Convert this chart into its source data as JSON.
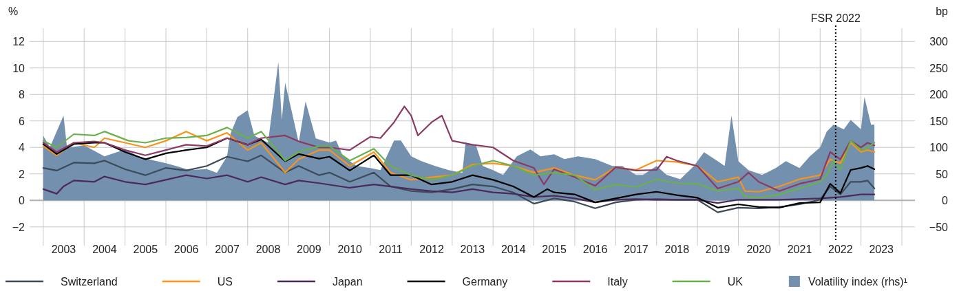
{
  "chart_data": {
    "type": "line",
    "ylabel": "%",
    "y2label": "bp",
    "legend": "bottom",
    "grid": true,
    "line_style": "solid",
    "marker": "none",
    "xlim": [
      "2002-09-01",
      "2024-04-27"
    ],
    "xticks": [
      {
        "value": "2003-01-01",
        "label": null
      },
      {
        "value": "2003-07-02",
        "label": "2003"
      },
      {
        "value": "2004-01-01",
        "label": null
      },
      {
        "value": "2004-07-02",
        "label": "2004"
      },
      {
        "value": "2005-01-01",
        "label": null
      },
      {
        "value": "2005-07-02",
        "label": "2005"
      },
      {
        "value": "2006-01-01",
        "label": null
      },
      {
        "value": "2006-07-02",
        "label": "2006"
      },
      {
        "value": "2007-01-01",
        "label": null
      },
      {
        "value": "2007-07-02",
        "label": "2007"
      },
      {
        "value": "2008-01-01",
        "label": null
      },
      {
        "value": "2008-07-02",
        "label": "2008"
      },
      {
        "value": "2009-01-01",
        "label": null
      },
      {
        "value": "2009-07-02",
        "label": "2009"
      },
      {
        "value": "2010-01-01",
        "label": null
      },
      {
        "value": "2010-07-02",
        "label": "2010"
      },
      {
        "value": "2011-01-01",
        "label": null
      },
      {
        "value": "2011-07-02",
        "label": "2011"
      },
      {
        "value": "2012-01-01",
        "label": null
      },
      {
        "value": "2012-07-02",
        "label": "2012"
      },
      {
        "value": "2013-01-01",
        "label": null
      },
      {
        "value": "2013-07-02",
        "label": "2013"
      },
      {
        "value": "2014-01-01",
        "label": null
      },
      {
        "value": "2014-07-02",
        "label": "2014"
      },
      {
        "value": "2015-01-01",
        "label": null
      },
      {
        "value": "2015-07-02",
        "label": "2015"
      },
      {
        "value": "2016-01-01",
        "label": null
      },
      {
        "value": "2016-07-02",
        "label": "2016"
      },
      {
        "value": "2017-01-01",
        "label": null
      },
      {
        "value": "2017-07-02",
        "label": "2017"
      },
      {
        "value": "2018-01-01",
        "label": null
      },
      {
        "value": "2018-07-02",
        "label": "2018"
      },
      {
        "value": "2019-01-01",
        "label": null
      },
      {
        "value": "2019-07-02",
        "label": "2019"
      },
      {
        "value": "2020-01-01",
        "label": null
      },
      {
        "value": "2020-07-02",
        "label": "2020"
      },
      {
        "value": "2021-01-01",
        "label": null
      },
      {
        "value": "2021-07-02",
        "label": "2021"
      },
      {
        "value": "2022-01-01",
        "label": null
      },
      {
        "value": "2022-07-02",
        "label": "2022"
      },
      {
        "value": "2023-01-01",
        "label": null
      },
      {
        "value": "2023-07-02",
        "label": "2023"
      },
      {
        "value": "2024-01-01",
        "label": null
      }
    ],
    "ylim": [
      -3,
      13
    ],
    "yticks": [
      -2,
      0,
      2,
      4,
      6,
      8,
      10,
      12
    ],
    "y2lim": [
      -75,
      325
    ],
    "y2ticks": [
      -50,
      0,
      50,
      100,
      150,
      200,
      250,
      300
    ],
    "ref_lines": [
      {
        "axis": "x",
        "value": "2022-05-20",
        "label": "FSR 2022",
        "color": "#000000",
        "line_style": "dotted"
      }
    ],
    "series": [
      {
        "name": "Switzerland",
        "color": "#3d4a57",
        "x": [
          "2003-01",
          "2003-05",
          "2003-10",
          "2004-04",
          "2004-07",
          "2005-01",
          "2005-07",
          "2006-01",
          "2006-07",
          "2007-01",
          "2007-07",
          "2008-01",
          "2008-05",
          "2008-12",
          "2009-04",
          "2009-10",
          "2010-01",
          "2010-07",
          "2011-02",
          "2011-07",
          "2012-01",
          "2012-07",
          "2013-01",
          "2013-07",
          "2014-01",
          "2014-07",
          "2015-01",
          "2015-07",
          "2016-01",
          "2016-07",
          "2017-01",
          "2017-07",
          "2018-01",
          "2018-07",
          "2019-01",
          "2019-07",
          "2020-01",
          "2020-07",
          "2021-01",
          "2021-07",
          "2022-01",
          "2022-04",
          "2022-07",
          "2022-10",
          "2023-01",
          "2023-03",
          "2023-05"
        ],
        "values": [
          2.45,
          2.25,
          2.85,
          2.8,
          3.0,
          2.35,
          1.9,
          2.45,
          2.25,
          2.6,
          3.3,
          2.95,
          3.4,
          2.1,
          2.6,
          1.9,
          2.1,
          1.4,
          2.1,
          1.05,
          0.7,
          0.6,
          0.85,
          1.2,
          1.05,
          0.6,
          -0.25,
          0.15,
          -0.1,
          -0.6,
          -0.15,
          0.05,
          0.1,
          0.05,
          0.05,
          -0.9,
          -0.55,
          -0.6,
          -0.5,
          -0.3,
          0.05,
          1.05,
          0.45,
          1.4,
          1.4,
          1.5,
          0.9
        ]
      },
      {
        "name": "US",
        "color": "#f7941d",
        "x": [
          "2003-01",
          "2003-05",
          "2003-10",
          "2004-04",
          "2004-07",
          "2005-01",
          "2005-07",
          "2006-01",
          "2006-07",
          "2007-01",
          "2007-07",
          "2008-01",
          "2008-05",
          "2008-12",
          "2009-04",
          "2009-10",
          "2010-01",
          "2010-07",
          "2011-02",
          "2011-07",
          "2012-01",
          "2012-07",
          "2013-01",
          "2013-07",
          "2014-01",
          "2014-07",
          "2015-01",
          "2015-07",
          "2016-01",
          "2016-07",
          "2017-01",
          "2017-07",
          "2018-01",
          "2018-07",
          "2019-01",
          "2019-07",
          "2020-01",
          "2020-03",
          "2020-07",
          "2021-01",
          "2021-07",
          "2022-01",
          "2022-04",
          "2022-07",
          "2022-10",
          "2023-01",
          "2023-03",
          "2023-05"
        ],
        "values": [
          4.1,
          3.4,
          4.35,
          4.0,
          4.7,
          4.35,
          4.0,
          4.5,
          5.2,
          4.5,
          5.1,
          3.8,
          4.35,
          2.1,
          3.1,
          3.8,
          3.8,
          2.6,
          3.65,
          2.1,
          1.55,
          1.75,
          1.9,
          2.7,
          2.8,
          2.6,
          2.1,
          2.45,
          1.9,
          1.55,
          2.5,
          2.3,
          3.0,
          2.9,
          2.6,
          1.4,
          1.75,
          0.7,
          0.65,
          1.05,
          1.6,
          1.9,
          3.1,
          2.8,
          4.35,
          3.65,
          3.8,
          3.65
        ]
      },
      {
        "name": "Japan",
        "color": "#4b2a5a",
        "x": [
          "2003-01",
          "2003-05",
          "2003-07",
          "2003-10",
          "2004-04",
          "2004-07",
          "2005-01",
          "2005-07",
          "2006-01",
          "2006-07",
          "2007-01",
          "2007-07",
          "2008-01",
          "2008-05",
          "2008-12",
          "2009-04",
          "2009-10",
          "2010-07",
          "2011-02",
          "2011-07",
          "2012-01",
          "2012-07",
          "2013-01",
          "2013-07",
          "2014-01",
          "2014-07",
          "2015-01",
          "2015-07",
          "2016-01",
          "2016-07",
          "2017-01",
          "2017-07",
          "2018-01",
          "2019-01",
          "2019-07",
          "2020-01",
          "2021-01",
          "2022-01",
          "2022-07",
          "2023-01",
          "2023-05"
        ],
        "values": [
          0.85,
          0.5,
          1.05,
          1.5,
          1.4,
          1.8,
          1.4,
          1.2,
          1.55,
          1.9,
          1.65,
          1.9,
          1.4,
          1.75,
          1.2,
          1.5,
          1.3,
          0.95,
          1.2,
          1.05,
          0.85,
          0.7,
          0.6,
          0.85,
          0.6,
          0.5,
          0.25,
          0.35,
          0.15,
          -0.15,
          0.05,
          0.1,
          0.05,
          0.05,
          -0.2,
          0.05,
          0.05,
          0.15,
          0.25,
          0.45,
          0.45
        ]
      },
      {
        "name": "Germany",
        "color": "#000000",
        "x": [
          "2003-01",
          "2003-05",
          "2003-10",
          "2004-04",
          "2004-07",
          "2005-01",
          "2005-07",
          "2006-01",
          "2006-07",
          "2007-01",
          "2007-07",
          "2008-01",
          "2008-05",
          "2008-12",
          "2009-04",
          "2009-10",
          "2010-01",
          "2010-07",
          "2011-02",
          "2011-07",
          "2012-01",
          "2012-07",
          "2013-01",
          "2013-07",
          "2014-01",
          "2014-07",
          "2015-01",
          "2015-05",
          "2015-07",
          "2016-01",
          "2016-07",
          "2017-01",
          "2017-07",
          "2018-01",
          "2018-07",
          "2019-01",
          "2019-07",
          "2020-01",
          "2020-07",
          "2021-01",
          "2021-07",
          "2022-01",
          "2022-04",
          "2022-07",
          "2022-10",
          "2023-01",
          "2023-03",
          "2023-05"
        ],
        "values": [
          4.25,
          3.5,
          4.25,
          4.35,
          4.35,
          3.65,
          3.1,
          3.55,
          3.8,
          4.0,
          4.7,
          4.2,
          4.6,
          2.95,
          3.5,
          3.15,
          3.3,
          2.25,
          3.4,
          1.9,
          1.9,
          1.2,
          1.4,
          1.9,
          1.55,
          1.05,
          0.25,
          0.85,
          0.6,
          0.45,
          -0.15,
          0.15,
          0.45,
          0.65,
          0.4,
          0.2,
          -0.55,
          -0.3,
          -0.5,
          -0.55,
          -0.2,
          -0.15,
          1.25,
          0.55,
          2.3,
          2.45,
          2.6,
          2.35
        ]
      },
      {
        "name": "Italy",
        "color": "#8b3a62",
        "x": [
          "2003-01",
          "2003-05",
          "2003-10",
          "2004-04",
          "2004-07",
          "2005-01",
          "2005-07",
          "2006-01",
          "2006-07",
          "2007-01",
          "2007-07",
          "2008-01",
          "2008-05",
          "2008-12",
          "2009-04",
          "2009-10",
          "2010-01",
          "2010-07",
          "2011-01",
          "2011-04",
          "2011-08",
          "2011-11",
          "2012-01",
          "2012-03",
          "2012-07",
          "2012-10",
          "2013-01",
          "2013-07",
          "2014-01",
          "2014-07",
          "2015-01",
          "2015-04",
          "2015-07",
          "2016-01",
          "2016-07",
          "2017-01",
          "2017-07",
          "2018-01",
          "2018-04",
          "2018-07",
          "2019-01",
          "2019-07",
          "2020-01",
          "2020-04",
          "2020-07",
          "2021-01",
          "2021-07",
          "2022-01",
          "2022-04",
          "2022-07",
          "2022-10",
          "2023-01",
          "2023-03",
          "2023-05"
        ],
        "values": [
          4.35,
          3.65,
          4.35,
          4.45,
          4.35,
          3.8,
          3.4,
          3.8,
          4.2,
          4.1,
          4.7,
          4.2,
          4.7,
          4.9,
          4.45,
          4.0,
          4.0,
          3.8,
          4.8,
          4.7,
          5.9,
          7.1,
          6.4,
          4.9,
          5.9,
          6.4,
          4.5,
          4.2,
          4.0,
          3.0,
          2.45,
          1.2,
          2.35,
          1.75,
          1.1,
          2.5,
          2.25,
          2.3,
          3.3,
          3.0,
          2.6,
          0.9,
          1.4,
          2.1,
          1.4,
          0.7,
          1.25,
          1.6,
          3.65,
          3.1,
          4.5,
          4.0,
          4.35,
          4.15
        ]
      },
      {
        "name": "UK",
        "color": "#6ab04c",
        "x": [
          "2003-01",
          "2003-05",
          "2003-10",
          "2004-04",
          "2004-07",
          "2005-02",
          "2005-07",
          "2006-01",
          "2006-07",
          "2007-01",
          "2007-07",
          "2008-01",
          "2008-05",
          "2008-12",
          "2009-04",
          "2009-10",
          "2010-01",
          "2010-07",
          "2011-02",
          "2011-07",
          "2012-01",
          "2012-07",
          "2013-01",
          "2013-07",
          "2014-01",
          "2014-07",
          "2015-01",
          "2015-07",
          "2016-01",
          "2016-07",
          "2017-01",
          "2017-07",
          "2018-01",
          "2018-07",
          "2019-01",
          "2019-07",
          "2020-01",
          "2020-03",
          "2020-07",
          "2021-01",
          "2021-07",
          "2022-01",
          "2022-03",
          "2022-05",
          "2022-07",
          "2022-10",
          "2023-01",
          "2023-03",
          "2023-05"
        ],
        "values": [
          4.5,
          4.0,
          5.0,
          4.9,
          5.2,
          4.5,
          4.35,
          4.7,
          4.75,
          4.9,
          5.5,
          4.7,
          5.2,
          3.0,
          3.65,
          4.1,
          4.1,
          3.0,
          3.9,
          2.6,
          1.9,
          1.55,
          1.9,
          2.6,
          3.0,
          2.6,
          1.9,
          2.1,
          1.9,
          0.8,
          1.2,
          1.0,
          1.6,
          1.3,
          1.25,
          0.7,
          0.9,
          0.3,
          0.2,
          0.45,
          0.9,
          1.4,
          1.9,
          3.0,
          2.3,
          4.5,
          3.8,
          4.0,
          4.35
        ]
      },
      {
        "name": "Volatility index (rhs)¹",
        "type": "area",
        "axis": "y2",
        "color": "#7390ae",
        "x": [
          "2003-01",
          "2003-03",
          "2003-07",
          "2003-08",
          "2003-09",
          "2004-01",
          "2004-07",
          "2005-01",
          "2005-05",
          "2005-09",
          "2006-01",
          "2006-04",
          "2006-08",
          "2007-01",
          "2007-04",
          "2007-07",
          "2007-08",
          "2007-10",
          "2008-01",
          "2008-03",
          "2008-07",
          "2008-10",
          "2008-11",
          "2008-12",
          "2009-02",
          "2009-04",
          "2009-06",
          "2009-09",
          "2010-01",
          "2010-03",
          "2010-05",
          "2010-09",
          "2011-01",
          "2011-04",
          "2011-08",
          "2011-10",
          "2012-01",
          "2012-04",
          "2012-08",
          "2012-12",
          "2013-04",
          "2013-05",
          "2013-08",
          "2013-10",
          "2014-01",
          "2014-04",
          "2014-08",
          "2014-12",
          "2015-03",
          "2015-07",
          "2015-10",
          "2016-02",
          "2016-07",
          "2016-12",
          "2017-03",
          "2017-07",
          "2017-09",
          "2018-01",
          "2018-04",
          "2018-08",
          "2018-12",
          "2019-03",
          "2019-07",
          "2019-09",
          "2019-11",
          "2020-01",
          "2020-04",
          "2020-08",
          "2020-12",
          "2021-03",
          "2021-07",
          "2021-10",
          "2022-01",
          "2022-03",
          "2022-05",
          "2022-08",
          "2022-10",
          "2023-01",
          "2023-02",
          "2023-04",
          "2023-05"
        ],
        "values": [
          122,
          100,
          160,
          100,
          100,
          104,
          83,
          96,
          83,
          76,
          70,
          65,
          57,
          59,
          52,
          83,
          126,
          157,
          170,
          122,
          109,
          261,
          152,
          222,
          165,
          109,
          187,
          117,
          109,
          113,
          83,
          65,
          61,
          57,
          113,
          113,
          83,
          74,
          65,
          57,
          52,
          109,
          104,
          65,
          57,
          48,
          83,
          96,
          83,
          87,
          78,
          83,
          78,
          65,
          65,
          48,
          48,
          65,
          48,
          40,
          65,
          91,
          74,
          65,
          160,
          74,
          57,
          48,
          61,
          74,
          61,
          83,
          100,
          130,
          143,
          134,
          152,
          134,
          195,
          143,
          143
        ]
      }
    ]
  }
}
